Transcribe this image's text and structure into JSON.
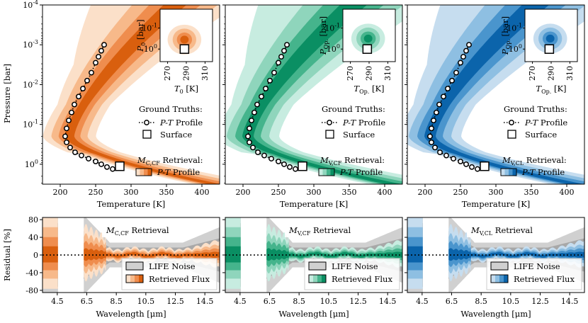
{
  "figure": {
    "y_axis_top_label": "Pressure [bar]",
    "y_axis_bottom_label": "Residual [%]",
    "x_axis_top_label": "Temperature [K]",
    "x_axis_bottom_label": "Wavelength [μm]"
  },
  "colors": {
    "C": [
      "#fbe0c9",
      "#f7b98a",
      "#ef8d4e",
      "#d95f0e"
    ],
    "V": [
      "#c7ece0",
      "#8fd5bc",
      "#45b48c",
      "#0a8f63"
    ],
    "CL": [
      "#c6ddef",
      "#8ebfe2",
      "#4a95cd",
      "#0b64ab"
    ],
    "noise": [
      "#d0d0d0",
      "#a8a8a8"
    ]
  },
  "panels": [
    {
      "key": "C",
      "retrieval_label": "M_C,CF",
      "retrieval_sub": "C,CF",
      "ground_truths_title": "Ground Truths:",
      "pt_profile_label": "P-T Profile",
      "surface_label": "Surface",
      "retrieval_title": "Retrieval:",
      "retrieved_pt_label": "P-T Profile",
      "inset_ylabel_base": "P",
      "inset_ylabel_sub": "0",
      "inset_ylabel_unit": "[bar]",
      "inset_xlabel_base": "T",
      "inset_xlabel_sub": "0",
      "inset_xlabel_unit": "[K]",
      "residual_title": "Retrieval",
      "noise_label": "LIFE Noise",
      "flux_label": "Retrieved Flux"
    },
    {
      "key": "V",
      "retrieval_label": "M_V,CF",
      "retrieval_sub": "V,CF",
      "ground_truths_title": "Ground Truths:",
      "pt_profile_label": "P-T Profile",
      "surface_label": "Surface",
      "retrieval_title": "Retrieval:",
      "retrieved_pt_label": "P-T Profile",
      "inset_ylabel_base": "P",
      "inset_ylabel_sub": "Op.",
      "inset_ylabel_unit": "[bar]",
      "inset_xlabel_base": "T",
      "inset_xlabel_sub": "Op.",
      "inset_xlabel_unit": "[K]",
      "residual_title": "Retrieval",
      "noise_label": "LIFE Noise",
      "flux_label": "Retrieved Flux"
    },
    {
      "key": "CL",
      "retrieval_label": "M_V,CL",
      "retrieval_sub": "V,CL",
      "ground_truths_title": "Ground Truths:",
      "pt_profile_label": "P-T Profile",
      "surface_label": "Surface",
      "retrieval_title": "Retrieval:",
      "retrieved_pt_label": "P-T Profile",
      "inset_ylabel_base": "P",
      "inset_ylabel_sub": "Op.",
      "inset_ylabel_unit": "[bar]",
      "inset_xlabel_base": "T",
      "inset_xlabel_sub": "Op.",
      "inset_xlabel_unit": "[K]",
      "residual_title": "Retrieval",
      "noise_label": "LIFE Noise",
      "flux_label": "Retrieved Flux"
    }
  ],
  "chart_data": {
    "type": "line",
    "title": "",
    "xlabel": "Temperature [K]",
    "ylabel": "Pressure [bar]",
    "x_range": [
      175,
      425
    ],
    "y_range_log10": [
      0.5,
      -4
    ],
    "x_ticks": [
      200,
      250,
      300,
      350,
      400
    ],
    "y_ticks": [
      "10^-4",
      "10^-3",
      "10^-2",
      "10^-1",
      "10^0"
    ],
    "y_tick_log10": [
      -4,
      -3,
      -2,
      -1,
      0
    ],
    "ground_truth_profile": [
      {
        "T": 262,
        "logP": -3.0
      },
      {
        "T": 258,
        "logP": -2.85
      },
      {
        "T": 254,
        "logP": -2.7
      },
      {
        "T": 250,
        "logP": -2.55
      },
      {
        "T": 244,
        "logP": -2.3
      },
      {
        "T": 238,
        "logP": -2.1
      },
      {
        "T": 232,
        "logP": -1.9
      },
      {
        "T": 226,
        "logP": -1.7
      },
      {
        "T": 220,
        "logP": -1.5
      },
      {
        "T": 216,
        "logP": -1.3
      },
      {
        "T": 212,
        "logP": -1.1
      },
      {
        "T": 209,
        "logP": -0.9
      },
      {
        "T": 207,
        "logP": -0.7
      },
      {
        "T": 209,
        "logP": -0.55
      },
      {
        "T": 214,
        "logP": -0.42
      },
      {
        "T": 221,
        "logP": -0.3
      },
      {
        "T": 230,
        "logP": -0.22
      },
      {
        "T": 240,
        "logP": -0.14
      },
      {
        "T": 250,
        "logP": -0.07
      },
      {
        "T": 258,
        "logP": 0.0
      },
      {
        "T": 266,
        "logP": 0.07
      },
      {
        "T": 274,
        "logP": 0.12
      }
    ],
    "surface": {
      "T": 284,
      "logP": 0.05
    },
    "inset": {
      "x_ticks": [
        270,
        290,
        310
      ],
      "x_range": [
        262,
        318
      ],
      "y_ticks": [
        "10^-1",
        "10^0"
      ],
      "y_tick_log10": [
        -1,
        0
      ],
      "y_range_log10": [
        0.6,
        -1.9
      ],
      "truth": {
        "T": 288,
        "logP": 0.0
      }
    },
    "residual": {
      "xlabel": "Wavelength [μm]",
      "ylabel": "Residual [%]",
      "x_range": [
        3.5,
        15.5
      ],
      "x_ticks": [
        4.5,
        6.5,
        8.5,
        10.5,
        12.5,
        14.5
      ],
      "y_range": [
        -85,
        85
      ],
      "y_ticks": [
        80,
        40,
        0,
        -40,
        -80
      ],
      "zero_line": 0
    }
  }
}
